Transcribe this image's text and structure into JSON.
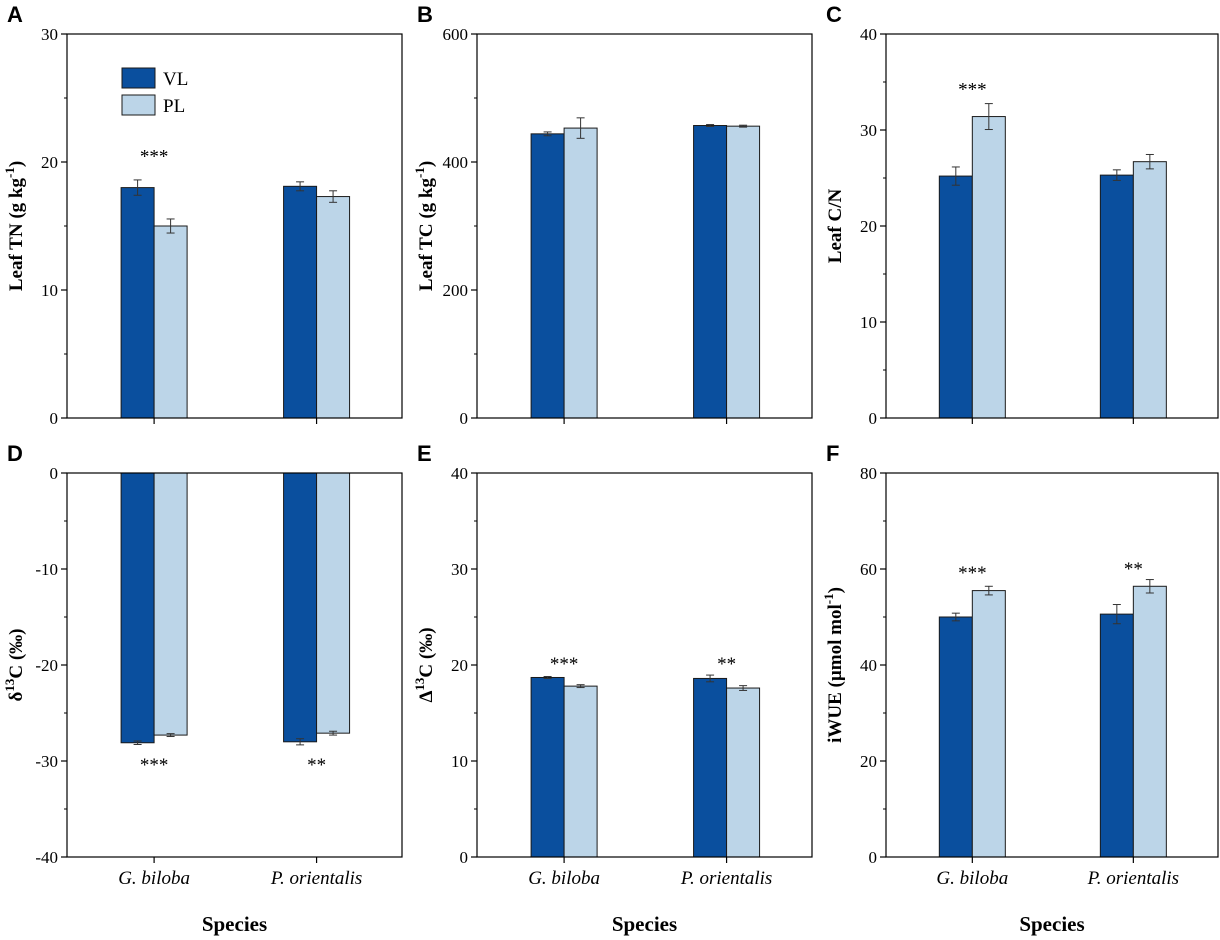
{
  "colors": {
    "VL": "#0a4f9e",
    "PL": "#bcd5e8",
    "axis": "#000000"
  },
  "legend": [
    {
      "key": "VL",
      "label": "VL"
    },
    {
      "key": "PL",
      "label": "PL"
    }
  ],
  "chart_data": [
    {
      "panel": "A",
      "type": "bar",
      "ylabel_main": "Leaf TN (g kg",
      "ylabel_sup": "-1",
      "ylabel_end": ")",
      "xlabel": "",
      "ylim": [
        0,
        30
      ],
      "yticks": [
        "0",
        "10",
        "20",
        "30"
      ],
      "ytick_values": [
        0,
        10,
        20,
        30
      ],
      "categories": [
        "G. biloba",
        "P. orientalis"
      ],
      "series": [
        {
          "name": "VL",
          "values": [
            18.0,
            18.1
          ],
          "errors": [
            0.6,
            0.35
          ]
        },
        {
          "name": "PL",
          "values": [
            15.0,
            17.3
          ],
          "errors": [
            0.55,
            0.45
          ]
        }
      ],
      "annotations": [
        {
          "category": 0,
          "text": "***",
          "value": 20.5
        }
      ],
      "show_legend": true
    },
    {
      "panel": "B",
      "type": "bar",
      "ylabel_main": "Leaf TC (g kg",
      "ylabel_sup": "-1",
      "ylabel_end": ")",
      "xlabel": "",
      "ylim": [
        0,
        600
      ],
      "yticks": [
        "0",
        "200",
        "400",
        "600"
      ],
      "ytick_values": [
        0,
        200,
        400,
        600
      ],
      "categories": [
        "G. biloba",
        "P. orientalis"
      ],
      "series": [
        {
          "name": "VL",
          "values": [
            444,
            457
          ],
          "errors": [
            3,
            1.5
          ]
        },
        {
          "name": "PL",
          "values": [
            453,
            456
          ],
          "errors": [
            16,
            1.5
          ]
        }
      ],
      "annotations": []
    },
    {
      "panel": "C",
      "type": "bar",
      "ylabel_main": "Leaf C/N",
      "ylabel_sup": "",
      "ylabel_end": "",
      "xlabel": "",
      "ylim": [
        0,
        40
      ],
      "yticks": [
        "0",
        "10",
        "20",
        "30",
        "40"
      ],
      "ytick_values": [
        0,
        10,
        20,
        30,
        40
      ],
      "categories": [
        "G. biloba",
        "P. orientalis"
      ],
      "series": [
        {
          "name": "VL",
          "values": [
            25.2,
            25.3
          ],
          "errors": [
            0.95,
            0.55
          ]
        },
        {
          "name": "PL",
          "values": [
            31.4,
            26.7
          ],
          "errors": [
            1.35,
            0.75
          ]
        }
      ],
      "annotations": [
        {
          "category": 0,
          "text": "***",
          "value": 34.3
        }
      ]
    },
    {
      "panel": "D",
      "type": "bar",
      "ylabel_main": "δ",
      "ylabel_sup": "13",
      "ylabel_end": "C (‰)",
      "xlabel": "Species",
      "ylim": [
        -40,
        0
      ],
      "yticks": [
        "-40",
        "-30",
        "-20",
        "-10",
        "0"
      ],
      "ytick_values": [
        -40,
        -30,
        -20,
        -10,
        0
      ],
      "categories": [
        "G. biloba",
        "P. orientalis"
      ],
      "series": [
        {
          "name": "VL",
          "values": [
            -28.1,
            -28.0
          ],
          "errors": [
            0.18,
            0.32
          ]
        },
        {
          "name": "PL",
          "values": [
            -27.3,
            -27.1
          ],
          "errors": [
            0.15,
            0.2
          ]
        }
      ],
      "annotations": [
        {
          "category": 0,
          "text": "***",
          "value": -30.3
        },
        {
          "category": 1,
          "text": "**",
          "value": -30.3
        }
      ]
    },
    {
      "panel": "E",
      "type": "bar",
      "ylabel_main": "Δ",
      "ylabel_sup": "13",
      "ylabel_end": "C (‰)",
      "xlabel": "Species",
      "ylim": [
        0,
        40
      ],
      "yticks": [
        "0",
        "10",
        "20",
        "30",
        "40"
      ],
      "ytick_values": [
        0,
        10,
        20,
        30,
        40
      ],
      "categories": [
        "G. biloba",
        "P. orientalis"
      ],
      "series": [
        {
          "name": "VL",
          "values": [
            18.7,
            18.6
          ],
          "errors": [
            0.1,
            0.35
          ]
        },
        {
          "name": "PL",
          "values": [
            17.8,
            17.6
          ],
          "errors": [
            0.15,
            0.25
          ]
        }
      ],
      "annotations": [
        {
          "category": 0,
          "text": "***",
          "value": 20.2
        },
        {
          "category": 1,
          "text": "**",
          "value": 20.2
        }
      ]
    },
    {
      "panel": "F",
      "type": "bar",
      "ylabel_main": "iWUE (µmol mol",
      "ylabel_sup": "-1",
      "ylabel_end": ")",
      "xlabel": "Species",
      "ylim": [
        0,
        80
      ],
      "yticks": [
        "0",
        "20",
        "40",
        "60",
        "80"
      ],
      "ytick_values": [
        0,
        20,
        40,
        60,
        80
      ],
      "categories": [
        "G. biloba",
        "P. orientalis"
      ],
      "series": [
        {
          "name": "VL",
          "values": [
            50.0,
            50.6
          ],
          "errors": [
            0.8,
            2.0
          ]
        },
        {
          "name": "PL",
          "values": [
            55.5,
            56.4
          ],
          "errors": [
            0.9,
            1.4
          ]
        }
      ],
      "annotations": [
        {
          "category": 0,
          "text": "***",
          "value": 59.4
        },
        {
          "category": 1,
          "text": "**",
          "value": 60.2
        }
      ]
    }
  ]
}
